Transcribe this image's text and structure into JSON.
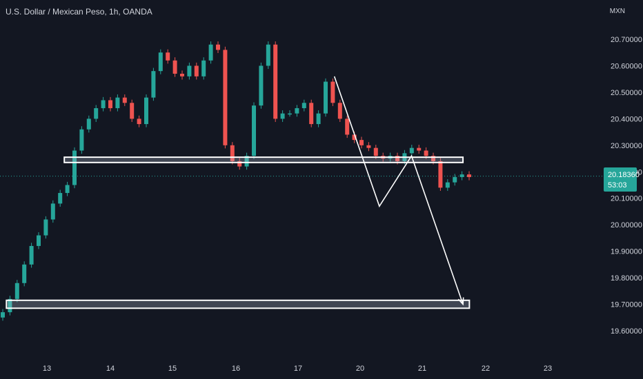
{
  "header": {
    "symbol_title": "U.S. Dollar / Mexican Peso, 1h, OANDA",
    "currency": "MXN"
  },
  "last_price": {
    "value": "20.18360",
    "countdown": "53:03",
    "level": 20.1836,
    "color": "#26a69a"
  },
  "colors": {
    "background": "#131722",
    "up": "#26a69a",
    "down": "#ef5350",
    "annotation": "#ffffff"
  },
  "chart_data": {
    "type": "candlestick",
    "y_axis": {
      "min": 19.6,
      "max": 20.7,
      "ticks": [
        "20.70000",
        "20.60000",
        "20.50000",
        "20.40000",
        "20.30000",
        "20.20000",
        "20.10000",
        "20.00000",
        "19.90000",
        "19.80000",
        "19.70000",
        "19.60000"
      ]
    },
    "x_axis": {
      "ticks": [
        "13",
        "14",
        "15",
        "16",
        "17",
        "20",
        "21",
        "22",
        "23"
      ]
    },
    "candles_close_path": [
      [
        0,
        19.67
      ],
      [
        1,
        19.72
      ],
      [
        2,
        19.78
      ],
      [
        3,
        19.85
      ],
      [
        4,
        19.92
      ],
      [
        5,
        19.96
      ],
      [
        6,
        20.02
      ],
      [
        7,
        20.08
      ],
      [
        8,
        20.12
      ],
      [
        9,
        20.15
      ],
      [
        10,
        20.28
      ],
      [
        11,
        20.36
      ],
      [
        12,
        20.4
      ],
      [
        13,
        20.44
      ],
      [
        14,
        20.47
      ],
      [
        15,
        20.44
      ],
      [
        16,
        20.48
      ],
      [
        17,
        20.46
      ],
      [
        18,
        20.4
      ],
      [
        19,
        20.38
      ],
      [
        20,
        20.48
      ],
      [
        21,
        20.58
      ],
      [
        22,
        20.65
      ],
      [
        23,
        20.62
      ],
      [
        24,
        20.57
      ],
      [
        25,
        20.56
      ],
      [
        26,
        20.6
      ],
      [
        27,
        20.56
      ],
      [
        28,
        20.62
      ],
      [
        29,
        20.68
      ],
      [
        30,
        20.66
      ],
      [
        31,
        20.3
      ],
      [
        32,
        20.24
      ],
      [
        33,
        20.22
      ],
      [
        34,
        20.26
      ],
      [
        35,
        20.45
      ],
      [
        36,
        20.6
      ],
      [
        37,
        20.68
      ],
      [
        38,
        20.4
      ],
      [
        39,
        20.42
      ],
      [
        40,
        20.42
      ],
      [
        41,
        20.44
      ],
      [
        42,
        20.46
      ],
      [
        43,
        20.38
      ],
      [
        44,
        20.42
      ],
      [
        45,
        20.54
      ],
      [
        46,
        20.46
      ],
      [
        47,
        20.4
      ],
      [
        48,
        20.34
      ],
      [
        49,
        20.32
      ],
      [
        50,
        20.3
      ],
      [
        51,
        20.29
      ],
      [
        52,
        20.26
      ],
      [
        53,
        20.25
      ],
      [
        54,
        20.26
      ],
      [
        55,
        20.24
      ],
      [
        56,
        20.27
      ],
      [
        57,
        20.29
      ],
      [
        58,
        20.28
      ],
      [
        59,
        20.26
      ],
      [
        60,
        20.24
      ],
      [
        61,
        20.14
      ],
      [
        62,
        20.16
      ],
      [
        63,
        20.18
      ],
      [
        64,
        20.19
      ],
      [
        65,
        20.18
      ]
    ],
    "zones": [
      {
        "name": "support-resistance-zone",
        "from": 20.235,
        "to": 20.255,
        "x_from": 0.1,
        "x_to": 0.72
      },
      {
        "name": "target-zone",
        "from": 19.685,
        "to": 19.715,
        "x_from": 0.01,
        "x_to": 0.73
      }
    ],
    "projection": [
      [
        0.52,
        20.56
      ],
      [
        0.59,
        20.07
      ],
      [
        0.64,
        20.26
      ],
      [
        0.72,
        19.7
      ]
    ]
  }
}
